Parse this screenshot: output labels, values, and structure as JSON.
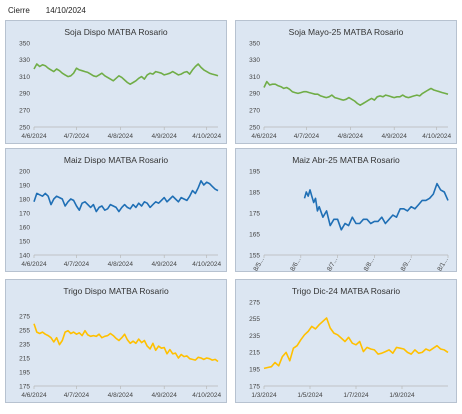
{
  "header": {
    "label": "Cierre",
    "date": "14/10/2024"
  },
  "chart_data": [
    {
      "type": "line",
      "title": "Soja Dispo MATBA Rosario",
      "color": "#70ad47",
      "ylim": [
        250,
        350
      ],
      "yticks": [
        250,
        270,
        290,
        310,
        330,
        350
      ],
      "xlim": [
        0,
        130
      ],
      "xticks": [
        {
          "x": 0,
          "label": "4/6/2024"
        },
        {
          "x": 30,
          "label": "4/7/2024"
        },
        {
          "x": 61,
          "label": "4/8/2024"
        },
        {
          "x": 92,
          "label": "4/9/2024"
        },
        {
          "x": 122,
          "label": "4/10/2024"
        }
      ],
      "x": [
        0,
        2,
        4,
        6,
        8,
        10,
        12,
        14,
        16,
        18,
        20,
        22,
        24,
        26,
        28,
        30,
        32,
        34,
        36,
        38,
        40,
        42,
        44,
        46,
        48,
        50,
        52,
        54,
        56,
        58,
        60,
        62,
        64,
        66,
        68,
        70,
        72,
        74,
        76,
        78,
        80,
        82,
        84,
        86,
        88,
        90,
        92,
        94,
        96,
        98,
        100,
        102,
        104,
        106,
        108,
        110,
        112,
        114,
        116,
        118,
        120,
        122,
        124,
        126,
        128,
        130
      ],
      "y": [
        319,
        325,
        322,
        324,
        323,
        320,
        318,
        316,
        319,
        317,
        314,
        312,
        310,
        311,
        314,
        320,
        318,
        317,
        316,
        315,
        313,
        311,
        310,
        312,
        314,
        311,
        309,
        307,
        305,
        308,
        311,
        309,
        306,
        303,
        301,
        303,
        305,
        308,
        310,
        307,
        312,
        314,
        313,
        316,
        315,
        314,
        312,
        313,
        314,
        316,
        314,
        312,
        313,
        315,
        316,
        313,
        318,
        322,
        325,
        321,
        318,
        316,
        314,
        313,
        312,
        311
      ]
    },
    {
      "type": "line",
      "title": "Soja Mayo-25 MATBA Rosario",
      "color": "#70ad47",
      "ylim": [
        250,
        350
      ],
      "yticks": [
        250,
        270,
        290,
        310,
        330,
        350
      ],
      "xlim": [
        0,
        130
      ],
      "xticks": [
        {
          "x": 0,
          "label": "4/6/2024"
        },
        {
          "x": 30,
          "label": "4/7/2024"
        },
        {
          "x": 61,
          "label": "4/8/2024"
        },
        {
          "x": 92,
          "label": "4/9/2024"
        },
        {
          "x": 122,
          "label": "4/10/2024"
        }
      ],
      "x": [
        0,
        2,
        4,
        6,
        8,
        10,
        12,
        14,
        16,
        18,
        20,
        22,
        24,
        26,
        28,
        30,
        32,
        34,
        36,
        38,
        40,
        42,
        44,
        46,
        48,
        50,
        52,
        54,
        56,
        58,
        60,
        62,
        64,
        66,
        68,
        70,
        72,
        74,
        76,
        78,
        80,
        82,
        84,
        86,
        88,
        90,
        92,
        94,
        96,
        98,
        100,
        102,
        104,
        106,
        108,
        110,
        112,
        114,
        116,
        118,
        120,
        122,
        124,
        126,
        128,
        130
      ],
      "y": [
        297,
        304,
        300,
        301,
        301,
        299,
        298,
        296,
        297,
        295,
        292,
        291,
        290,
        291,
        292,
        292,
        291,
        290,
        289,
        289,
        287,
        286,
        285,
        286,
        288,
        285,
        284,
        283,
        282,
        283,
        285,
        283,
        281,
        278,
        276,
        278,
        280,
        282,
        284,
        282,
        286,
        287,
        286,
        288,
        287,
        286,
        285,
        286,
        286,
        288,
        286,
        285,
        286,
        287,
        288,
        287,
        290,
        292,
        294,
        296,
        294,
        293,
        292,
        291,
        290,
        289
      ]
    },
    {
      "type": "line",
      "title": "Maiz Dispo MATBA Rosario",
      "color": "#1f6fb5",
      "ylim": [
        140,
        200
      ],
      "yticks": [
        140,
        150,
        160,
        170,
        180,
        190,
        200
      ],
      "xlim": [
        0,
        130
      ],
      "xticks": [
        {
          "x": 0,
          "label": "4/6/2024"
        },
        {
          "x": 30,
          "label": "4/7/2024"
        },
        {
          "x": 61,
          "label": "4/8/2024"
        },
        {
          "x": 92,
          "label": "4/9/2024"
        },
        {
          "x": 122,
          "label": "4/10/2024"
        }
      ],
      "x": [
        0,
        2,
        4,
        6,
        8,
        10,
        12,
        14,
        16,
        18,
        20,
        22,
        24,
        26,
        28,
        30,
        32,
        34,
        36,
        38,
        40,
        42,
        44,
        46,
        48,
        50,
        52,
        54,
        56,
        58,
        60,
        62,
        64,
        66,
        68,
        70,
        72,
        74,
        76,
        78,
        80,
        82,
        84,
        86,
        88,
        90,
        92,
        94,
        96,
        98,
        100,
        102,
        104,
        106,
        108,
        110,
        112,
        114,
        116,
        118,
        120,
        122,
        124,
        126,
        128,
        130
      ],
      "y": [
        178,
        184,
        183,
        182,
        184,
        182,
        176,
        180,
        182,
        181,
        180,
        175,
        178,
        180,
        179,
        175,
        172,
        177,
        178,
        176,
        174,
        176,
        171,
        174,
        175,
        172,
        173,
        176,
        175,
        174,
        171,
        174,
        176,
        174,
        173,
        176,
        174,
        177,
        175,
        178,
        177,
        174,
        176,
        178,
        177,
        179,
        181,
        178,
        180,
        182,
        180,
        178,
        181,
        180,
        179,
        182,
        186,
        184,
        188,
        193,
        190,
        192,
        191,
        189,
        187,
        186
      ]
    },
    {
      "type": "line",
      "title": "Maiz Abr-25 MATBA Rosario",
      "color": "#1f6fb5",
      "ylim": [
        155,
        195
      ],
      "yticks": [
        155,
        165,
        175,
        185,
        195
      ],
      "xlim": [
        0,
        100
      ],
      "xticks": [
        {
          "x": 0,
          "label": "8/5..."
        },
        {
          "x": 20,
          "label": "8/6..."
        },
        {
          "x": 40,
          "label": "8/7..."
        },
        {
          "x": 60,
          "label": "8/8..."
        },
        {
          "x": 80,
          "label": "8/9..."
        },
        {
          "x": 100,
          "label": "8/1..."
        }
      ],
      "x": [
        22,
        23,
        24,
        25,
        26,
        27,
        28,
        29,
        30,
        32,
        34,
        36,
        38,
        40,
        42,
        44,
        46,
        48,
        50,
        52,
        54,
        56,
        58,
        60,
        62,
        64,
        66,
        68,
        70,
        72,
        74,
        76,
        78,
        80,
        82,
        84,
        86,
        88,
        90,
        92,
        94,
        96,
        98,
        100
      ],
      "y": [
        182,
        185,
        183,
        186,
        183,
        180,
        182,
        176,
        178,
        173,
        176,
        169,
        172,
        172,
        167,
        170,
        169,
        173,
        170,
        170,
        172,
        172,
        170,
        171,
        171,
        173,
        170,
        172,
        174,
        173,
        177,
        177,
        176,
        178,
        177,
        179,
        181,
        181,
        182,
        184,
        189,
        186,
        185,
        181
      ]
    },
    {
      "type": "line",
      "title": "Trigo Dispo MATBA Rosario",
      "color": "#ffc000",
      "ylim": [
        175,
        295
      ],
      "yticks": [
        175,
        195,
        215,
        235,
        255,
        275
      ],
      "xlim": [
        0,
        130
      ],
      "xticks": [
        {
          "x": 0,
          "label": "4/6/2024"
        },
        {
          "x": 30,
          "label": "4/7/2024"
        },
        {
          "x": 61,
          "label": "4/8/2024"
        },
        {
          "x": 92,
          "label": "4/9/2024"
        },
        {
          "x": 122,
          "label": "4/10/2024"
        }
      ],
      "x": [
        0,
        2,
        4,
        6,
        8,
        10,
        12,
        14,
        16,
        18,
        20,
        22,
        24,
        26,
        28,
        30,
        32,
        34,
        36,
        38,
        40,
        42,
        44,
        46,
        48,
        50,
        52,
        54,
        56,
        58,
        60,
        62,
        64,
        66,
        68,
        70,
        72,
        74,
        76,
        78,
        80,
        82,
        84,
        86,
        88,
        90,
        92,
        94,
        96,
        98,
        100,
        102,
        104,
        106,
        108,
        110,
        112,
        114,
        116,
        118,
        120,
        122,
        124,
        126,
        128,
        130
      ],
      "y": [
        264,
        252,
        250,
        252,
        249,
        247,
        244,
        238,
        244,
        234,
        240,
        252,
        254,
        250,
        252,
        249,
        251,
        247,
        254,
        248,
        246,
        247,
        246,
        249,
        244,
        246,
        247,
        250,
        247,
        243,
        240,
        244,
        249,
        241,
        236,
        239,
        236,
        242,
        237,
        240,
        232,
        228,
        236,
        226,
        232,
        229,
        230,
        221,
        227,
        221,
        222,
        215,
        220,
        217,
        218,
        214,
        213,
        212,
        216,
        215,
        213,
        215,
        214,
        212,
        213,
        210
      ]
    },
    {
      "type": "line",
      "title": "Trigo Dic-24 MATBA Rosario",
      "color": "#ffc000",
      "ylim": [
        175,
        275
      ],
      "yticks": [
        175,
        195,
        215,
        235,
        255,
        275
      ],
      "xlim": [
        0,
        100
      ],
      "xticks": [
        {
          "x": 0,
          "label": "1/3/2024"
        },
        {
          "x": 25,
          "label": "1/5/2024"
        },
        {
          "x": 50,
          "label": "1/7/2024"
        },
        {
          "x": 75,
          "label": "1/9/2024"
        }
      ],
      "x": [
        0,
        2,
        4,
        6,
        8,
        10,
        12,
        14,
        16,
        18,
        20,
        22,
        24,
        26,
        28,
        30,
        32,
        34,
        36,
        38,
        40,
        42,
        44,
        46,
        48,
        50,
        52,
        54,
        56,
        58,
        60,
        62,
        64,
        66,
        68,
        70,
        72,
        74,
        76,
        78,
        80,
        82,
        84,
        86,
        88,
        90,
        92,
        94,
        96,
        98,
        100
      ],
      "y": [
        196,
        197,
        198,
        203,
        199,
        210,
        215,
        205,
        220,
        223,
        230,
        236,
        240,
        246,
        243,
        248,
        252,
        256,
        244,
        238,
        236,
        232,
        228,
        233,
        226,
        224,
        228,
        216,
        221,
        219,
        218,
        213,
        214,
        216,
        218,
        214,
        221,
        220,
        219,
        215,
        213,
        218,
        214,
        215,
        219,
        217,
        220,
        223,
        219,
        218,
        215
      ]
    }
  ]
}
